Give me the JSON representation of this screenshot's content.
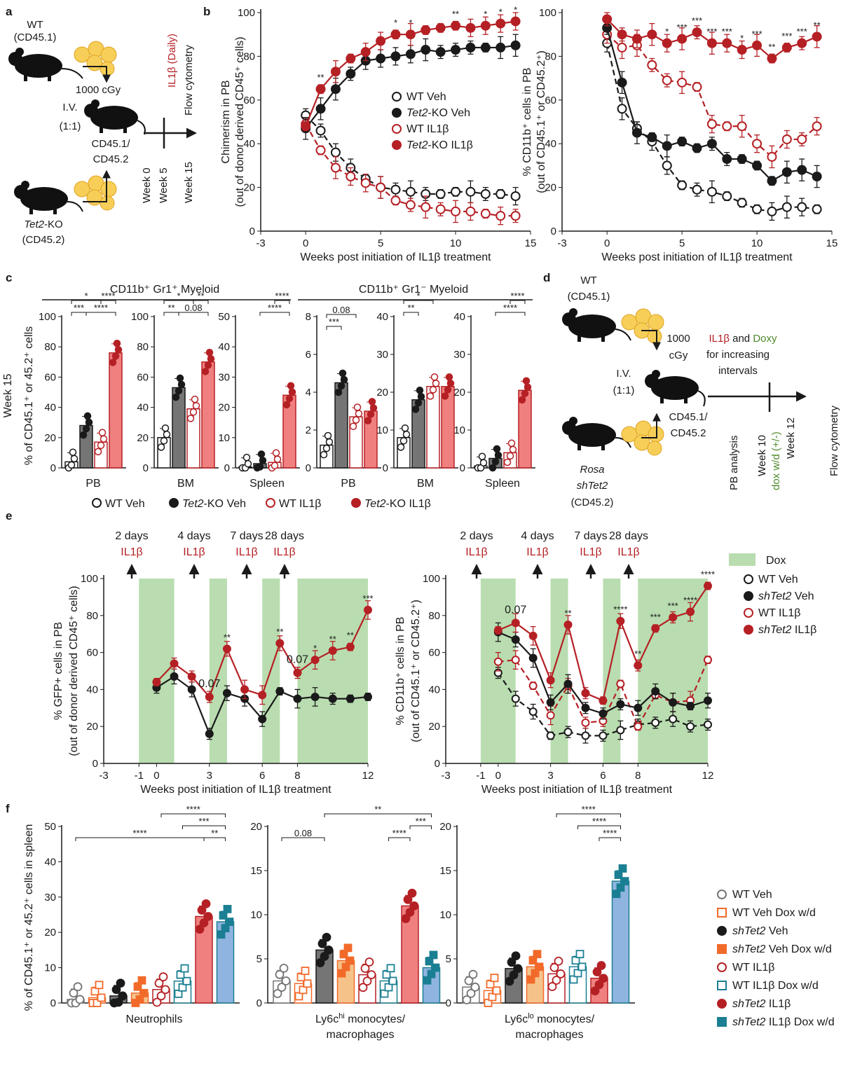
{
  "colors": {
    "red": "#b52025",
    "pink": "#f08080",
    "grey": "#757575",
    "black": "#1a1a1a",
    "green": "#b9ddb0",
    "orange": "#f26a2a",
    "lightorange": "#f9b986",
    "blue": "#8fb4e0",
    "teal": "#1b7f93",
    "sand": "#f5c38a"
  },
  "panels": {
    "a": "a",
    "b": "b",
    "c": "c",
    "d": "d",
    "e": "e",
    "f": "f"
  },
  "schemeA": {
    "wt": "WT",
    "wt_cd": "(CD45.1)",
    "dose": "1000 cGy",
    "iv": "I.V.",
    "ratio": "(1:1)",
    "cd451": "CD45.1/",
    "cd452": "CD45.2",
    "ko": "Tet2",
    "ko_suffix": "-KO",
    "ko_cd": "(CD45.2)",
    "il1b": "IL1β (Daily)",
    "flow": "Flow cytometry",
    "w0": "Week 0",
    "w5": "Week 5",
    "w15": "Week 15"
  },
  "schemeD": {
    "wt": "WT",
    "wt_cd": "(CD45.1)",
    "dose1": "1000",
    "dose2": "cGy",
    "treat_a": "IL1β",
    "treat_and": "and",
    "treat_b": "Doxy",
    "treat2": "for increasing",
    "treat3": "intervals",
    "iv": "I.V.",
    "ratio": "(1:1)",
    "cd451": "CD45.1/",
    "cd452": "CD45.2",
    "rosa": "Rosa",
    "shtet": "shTet2",
    "ko_cd": "(CD45.2)",
    "pb": "PB analysis",
    "w10": "Week 10",
    "dox": "dox w/d (+/-)",
    "w12": "Week 12",
    "flow": "Flow cytometry"
  },
  "legendB": [
    "WT Veh",
    "Tet2-KO Veh",
    "WT IL1β",
    "Tet2-KO IL1β"
  ],
  "legendBparts": [
    {
      "it": "",
      "rest": "WT Veh"
    },
    {
      "it": "Tet2",
      "rest": "-KO Veh"
    },
    {
      "it": "",
      "rest": "WT IL1β"
    },
    {
      "it": "Tet2",
      "rest": "-KO IL1β"
    }
  ],
  "legendC": [
    {
      "it": "",
      "rest": "WT Veh"
    },
    {
      "it": "Tet2",
      "rest": "-KO Veh"
    },
    {
      "it": "",
      "rest": "WT IL1β"
    },
    {
      "it": "Tet2",
      "rest": "-KO IL1β"
    }
  ],
  "legendE": {
    "dox": "Dox",
    "items": [
      {
        "it": "",
        "rest": "WT Veh"
      },
      {
        "it": "shTet2",
        "rest": " Veh"
      },
      {
        "it": "",
        "rest": "WT IL1β"
      },
      {
        "it": "shTet2",
        "rest": " IL1β"
      }
    ]
  },
  "legendF": [
    {
      "it": "",
      "rest": "WT Veh"
    },
    {
      "it": "",
      "rest": "WT Veh Dox w/d"
    },
    {
      "it": "shTet2",
      "rest": " Veh"
    },
    {
      "it": "shTet2",
      "rest": " Veh Dox w/d"
    },
    {
      "it": "",
      "rest": "WT IL1β"
    },
    {
      "it": "",
      "rest": "WT IL1β Dox w/d"
    },
    {
      "it": "shTet2",
      "rest": " IL1β"
    },
    {
      "it": "shTet2",
      "rest": " IL1β Dox w/d"
    }
  ],
  "headersC": {
    "gr1pos": "CD11b⁺ Gr1⁺ Myeloid",
    "gr1neg": "CD11b⁺ Gr1⁻ Myeloid",
    "week": "Week 15",
    "ylabel": "% of CD45.1⁺ or 45.2⁺ cells"
  },
  "eArrows": [
    {
      "d": "2 days",
      "il": "IL1β"
    },
    {
      "d": "4 days",
      "il": "IL1β"
    },
    {
      "d": "7 days",
      "il": "IL1β"
    },
    {
      "d": "28 days",
      "il": "IL1β"
    }
  ],
  "chart_data": [
    {
      "id": "b-left",
      "type": "line",
      "xlabel": "Weeks post initiation of IL1β treatment",
      "ylabel": "Chimerism in PB",
      "ylabel2": "(out of donor derived CD45⁺ cells)",
      "xlim": [
        -3,
        15
      ],
      "ylim": [
        0,
        100
      ],
      "xticks": [
        -3,
        0,
        5,
        10,
        15
      ],
      "yticks": [
        0,
        20,
        40,
        60,
        80,
        100
      ],
      "x": [
        0,
        1,
        2,
        3,
        4,
        5,
        6,
        7,
        8,
        9,
        10,
        11,
        12,
        13,
        14
      ],
      "series": [
        {
          "name": "WT Veh",
          "values": [
            53,
            46,
            36,
            29,
            24,
            20,
            19,
            18,
            17,
            17,
            18,
            18,
            17,
            17,
            16
          ]
        },
        {
          "name": "Tet2-KO Veh",
          "values": [
            47,
            56,
            65,
            72,
            78,
            79,
            80,
            81,
            83,
            82,
            83,
            84,
            84,
            84,
            85
          ]
        },
        {
          "name": "WT IL1β",
          "values": [
            49,
            37,
            29,
            25,
            22,
            20,
            14,
            12,
            11,
            10,
            9,
            9,
            8,
            7,
            7
          ]
        },
        {
          "name": "Tet2-KO IL1β",
          "values": [
            48,
            65,
            73,
            79,
            82,
            87,
            90,
            90,
            92,
            93,
            94,
            93,
            94,
            95,
            96
          ]
        }
      ],
      "stars": [
        {
          "x": 1,
          "t": "**"
        },
        {
          "x": 6,
          "t": "*"
        },
        {
          "x": 7,
          "t": "*"
        },
        {
          "x": 10,
          "t": "**"
        },
        {
          "x": 12,
          "t": "*"
        },
        {
          "x": 13,
          "t": "*"
        },
        {
          "x": 14,
          "t": "*"
        }
      ]
    },
    {
      "id": "b-right",
      "type": "line",
      "xlabel": "Weeks post initiation of IL1β treatment",
      "ylabel": "% CD11b⁺ cells in PB",
      "ylabel2": "(out of CD45.1⁺ or CD45.2⁺)",
      "xlim": [
        -3,
        15
      ],
      "ylim": [
        0,
        100
      ],
      "xticks": [
        -3,
        0,
        5,
        10,
        15
      ],
      "yticks": [
        0,
        20,
        40,
        60,
        80,
        100
      ],
      "x": [
        0,
        1,
        2,
        3,
        4,
        5,
        6,
        7,
        8,
        9,
        10,
        11,
        12,
        13,
        14
      ],
      "series": [
        {
          "name": "WT Veh",
          "values": [
            86,
            56,
            47,
            41,
            30,
            21,
            19,
            18,
            16,
            13,
            10,
            9,
            11,
            11,
            10
          ]
        },
        {
          "name": "Tet2-KO Veh",
          "values": [
            93,
            68,
            45,
            43,
            39,
            41,
            38,
            40,
            33,
            33,
            30,
            23,
            27,
            28,
            25
          ]
        },
        {
          "name": "WT IL1β",
          "values": [
            90,
            84,
            85,
            76,
            69,
            68,
            66,
            49,
            48,
            48,
            40,
            34,
            42,
            42,
            48
          ]
        },
        {
          "name": "Tet2-KO IL1β",
          "values": [
            97,
            90,
            88,
            90,
            86,
            88,
            91,
            86,
            86,
            83,
            85,
            79,
            84,
            86,
            89
          ]
        }
      ],
      "stars": [
        {
          "x": 4,
          "t": "*"
        },
        {
          "x": 5,
          "t": "***"
        },
        {
          "x": 6,
          "t": "***"
        },
        {
          "x": 7,
          "t": "***"
        },
        {
          "x": 8,
          "t": "***"
        },
        {
          "x": 9,
          "t": "*"
        },
        {
          "x": 10,
          "t": "***"
        },
        {
          "x": 11,
          "t": "**"
        },
        {
          "x": 12,
          "t": "***"
        },
        {
          "x": 13,
          "t": "***"
        },
        {
          "x": 14,
          "t": "**"
        }
      ]
    },
    {
      "id": "c",
      "type": "bar",
      "groups": [
        {
          "tissue": "PB",
          "ylim": [
            0,
            100
          ],
          "yticks": [
            0,
            20,
            40,
            60,
            80,
            100
          ],
          "values": [
            4,
            28,
            17,
            76
          ],
          "brackets": [
            {
              "a": 0,
              "b": 1,
              "t": "***",
              "l": 0
            },
            {
              "a": 0,
              "b": 2,
              "t": "*",
              "l": 1
            },
            {
              "a": 1,
              "b": 3,
              "t": "****",
              "l": 0
            },
            {
              "a": 2,
              "b": 3,
              "t": "****",
              "l": 1
            }
          ]
        },
        {
          "tissue": "BM",
          "ylim": [
            0,
            100
          ],
          "yticks": [
            0,
            20,
            40,
            60,
            80,
            100
          ],
          "values": [
            20,
            53,
            39,
            70
          ],
          "brackets": [
            {
              "a": 0,
              "b": 1,
              "t": "**",
              "l": 0
            },
            {
              "a": 0,
              "b": 2,
              "t": "*",
              "l": 1
            },
            {
              "a": 1,
              "b": 3,
              "t": "0.08",
              "l": 0
            },
            {
              "a": 2,
              "b": 3,
              "t": "**",
              "l": 1
            }
          ]
        },
        {
          "tissue": "Spleen",
          "ylim": [
            0,
            50
          ],
          "yticks": [
            0,
            10,
            20,
            30,
            40,
            50
          ],
          "values": [
            0.3,
            1.4,
            1.8,
            24
          ],
          "brackets": [
            {
              "a": 1,
              "b": 3,
              "t": "****",
              "l": 0
            },
            {
              "a": 2,
              "b": 3,
              "t": "****",
              "l": 1
            }
          ]
        },
        {
          "tissue": "PB",
          "ylim": [
            0,
            8
          ],
          "yticks": [
            0,
            2,
            4,
            6,
            8
          ],
          "values": [
            1.2,
            4.5,
            2.7,
            3
          ],
          "brackets": [
            {
              "a": 0,
              "b": 1,
              "t": "***",
              "l": 0
            },
            {
              "a": 0,
              "b": 2,
              "t": "0.08",
              "l": 1
            }
          ]
        },
        {
          "tissue": "BM",
          "ylim": [
            0,
            40
          ],
          "yticks": [
            0,
            10,
            20,
            30,
            40
          ],
          "values": [
            8,
            18,
            21.5,
            21.5
          ],
          "brackets": [
            {
              "a": 0,
              "b": 1,
              "t": "**",
              "l": 0
            },
            {
              "a": 0,
              "b": 2,
              "t": "*",
              "l": 1
            }
          ]
        },
        {
          "tissue": "Spleen",
          "ylim": [
            0,
            40
          ],
          "yticks": [
            0,
            10,
            20,
            30,
            40
          ],
          "values": [
            0.5,
            2.5,
            4,
            20.5
          ],
          "brackets": [
            {
              "a": 1,
              "b": 3,
              "t": "****",
              "l": 0
            },
            {
              "a": 2,
              "b": 3,
              "t": "****",
              "l": 1
            }
          ]
        }
      ]
    },
    {
      "id": "e-left",
      "type": "line",
      "xlabel": "Weeks post initiation of IL1β treatment",
      "ylabel": "% GFP+ cells in PB",
      "ylabel2": "(out of donor derived CD45⁺ cells)",
      "xlim": [
        -3,
        12
      ],
      "ylim": [
        0,
        100
      ],
      "xticks": [
        -3,
        -1,
        0,
        3,
        6,
        8,
        12
      ],
      "yticks": [
        0,
        20,
        40,
        60,
        80,
        100
      ],
      "dox": [
        [
          -1,
          1
        ],
        [
          3,
          4
        ],
        [
          6,
          7
        ],
        [
          8,
          12
        ]
      ],
      "x": [
        0,
        1,
        2,
        3,
        4,
        5,
        6,
        7,
        8,
        9,
        10,
        11,
        12
      ],
      "series": [
        {
          "name": "shTet2 Veh",
          "values": [
            41,
            47,
            40,
            16,
            38,
            35,
            24,
            39,
            35,
            36,
            35,
            35,
            36
          ]
        },
        {
          "name": "shTet2 IL1β",
          "values": [
            44,
            54,
            47,
            36,
            62,
            40,
            37,
            65,
            49,
            56,
            61,
            63,
            83
          ]
        }
      ],
      "stars": [
        {
          "x": 4,
          "t": "**"
        },
        {
          "x": 7,
          "t": "**"
        },
        {
          "x": 9,
          "t": "*"
        },
        {
          "x": 10,
          "t": "**"
        },
        {
          "x": 11,
          "t": "**"
        },
        {
          "x": 12,
          "t": "***"
        }
      ],
      "pvals": [
        {
          "x": 3,
          "t": "0.07"
        },
        {
          "x": 8,
          "t": "0.07"
        }
      ]
    },
    {
      "id": "e-right",
      "type": "line",
      "xlabel": "Weeks post initiation of IL1β treatment",
      "ylabel": "% CD11b⁺ cells in PB",
      "ylabel2": "(out of CD45.1⁺ or CD45.2⁺)",
      "xlim": [
        -3,
        12
      ],
      "ylim": [
        0,
        100
      ],
      "xticks": [
        -3,
        -1,
        0,
        3,
        6,
        8,
        12
      ],
      "yticks": [
        0,
        20,
        40,
        60,
        80,
        100
      ],
      "dox": [
        [
          -1,
          1
        ],
        [
          3,
          4
        ],
        [
          6,
          7
        ],
        [
          8,
          12
        ]
      ],
      "x": [
        0,
        1,
        2,
        3,
        4,
        5,
        6,
        7,
        8,
        9,
        10,
        11,
        12
      ],
      "series": [
        {
          "name": "WT Veh",
          "values": [
            49,
            35,
            28,
            15,
            17,
            15,
            15,
            18,
            21,
            22,
            24,
            20,
            21
          ]
        },
        {
          "name": "shTet2 Veh",
          "values": [
            71,
            67,
            57,
            33,
            43,
            30,
            27,
            32,
            30,
            39,
            33,
            31,
            34
          ]
        },
        {
          "name": "WT IL1β",
          "values": [
            55,
            56,
            42,
            26,
            42,
            22,
            23,
            43,
            20,
            37,
            33,
            34,
            56
          ]
        },
        {
          "name": "shTet2 IL1β",
          "values": [
            72,
            76,
            69,
            45,
            75,
            38,
            34,
            77,
            53,
            73,
            79,
            82,
            96
          ]
        }
      ],
      "stars": [
        {
          "x": 4,
          "t": "**"
        },
        {
          "x": 7,
          "t": "****"
        },
        {
          "x": 8,
          "t": "**"
        },
        {
          "x": 9,
          "t": "***"
        },
        {
          "x": 10,
          "t": "***"
        },
        {
          "x": 11,
          "t": "****"
        },
        {
          "x": 12,
          "t": "****"
        }
      ],
      "pvals": [
        {
          "x": 1,
          "t": "0.07"
        }
      ]
    },
    {
      "id": "f",
      "type": "bar",
      "ylabel": "% of CD45.1⁺ or 45.2⁺ cells in spleen",
      "groups": [
        {
          "label": "Neutrophils",
          "label2": "",
          "ylim": [
            0,
            50
          ],
          "yticks": [
            0,
            10,
            20,
            30,
            40,
            50
          ],
          "values": [
            1,
            1.5,
            2,
            2.8,
            3.8,
            6.2,
            24.5,
            23
          ],
          "brackets": [
            {
              "a": 6,
              "b": 7,
              "t": "**",
              "l": 0
            },
            {
              "a": 5,
              "b": 7,
              "t": "***",
              "l": 1
            },
            {
              "a": 4,
              "b": 7,
              "t": "****",
              "l": 2
            },
            {
              "a": 0,
              "b": 6,
              "t": "****",
              "l": 0
            }
          ]
        },
        {
          "label": "Ly6c",
          "sup": "hi",
          "label_rest": " monocytes/",
          "label2": "macrophages",
          "ylim": [
            0,
            20
          ],
          "yticks": [
            0,
            5,
            10,
            15,
            20
          ],
          "values": [
            2.5,
            2.2,
            6,
            4.8,
            3.2,
            2.5,
            11,
            4
          ],
          "brackets": [
            {
              "a": 0,
              "b": 2,
              "t": "0.08",
              "l": 0
            },
            {
              "a": 5,
              "b": 6,
              "t": "****",
              "l": 0
            },
            {
              "a": 6,
              "b": 7,
              "t": "***",
              "l": 1
            },
            {
              "a": 2,
              "b": 7,
              "t": "**",
              "l": 2
            }
          ]
        },
        {
          "label": "Ly6c",
          "sup": "lo",
          "label_rest": " monocytes/",
          "label2": "macrophages",
          "ylim": [
            0,
            20
          ],
          "yticks": [
            0,
            5,
            10,
            15,
            20
          ],
          "values": [
            1.8,
            1.4,
            3.9,
            4.1,
            3.3,
            4.1,
            2.8,
            13.8
          ],
          "brackets": [
            {
              "a": 6,
              "b": 7,
              "t": "****",
              "l": 0
            },
            {
              "a": 5,
              "b": 7,
              "t": "****",
              "l": 1
            },
            {
              "a": 4,
              "b": 7,
              "t": "****",
              "l": 2
            }
          ]
        }
      ]
    }
  ]
}
